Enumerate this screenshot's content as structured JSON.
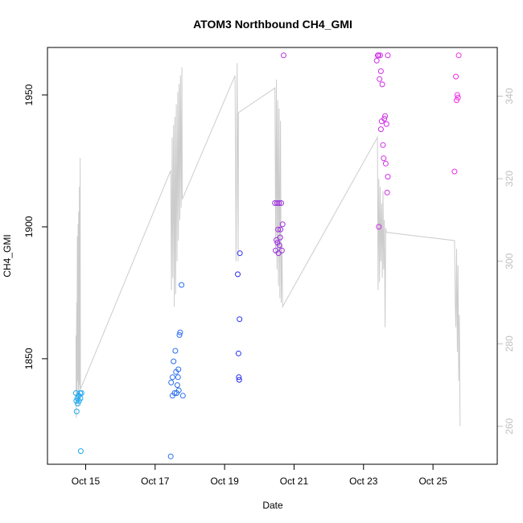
{
  "chart_data": {
    "type": "scatter",
    "title": "ATOM3 Northbound CH4_GMI",
    "xlabel": "Date",
    "ylabel": "CH4_GMI",
    "x_ticks": [
      {
        "value": 15,
        "label": "Oct 15"
      },
      {
        "value": 17,
        "label": "Oct 17"
      },
      {
        "value": 19,
        "label": "Oct 19"
      },
      {
        "value": 21,
        "label": "Oct 21"
      },
      {
        "value": 23,
        "label": "Oct 23"
      },
      {
        "value": 25,
        "label": "Oct 25"
      }
    ],
    "xlim": [
      13.9,
      26.85
    ],
    "ylim": [
      1810,
      1968
    ],
    "y_ticks": [
      1850,
      1900,
      1950
    ],
    "y2lim": [
      250.8,
      351.8
    ],
    "y2_ticks": [
      260,
      280,
      300,
      320,
      340
    ],
    "grid": false,
    "legend": "none",
    "colors": {
      "line": "#cccccc",
      "right_axis": "#bfbfbf",
      "axis": "#000000"
    },
    "series": [
      {
        "kind": "points",
        "points": [
          {
            "x": 14.72,
            "y": 1837,
            "c": "#1ea8f0"
          },
          {
            "x": 14.76,
            "y": 1835,
            "c": "#1ea8f0"
          },
          {
            "x": 14.8,
            "y": 1836,
            "c": "#1ea8f0"
          },
          {
            "x": 14.84,
            "y": 1837,
            "c": "#1ea8f0"
          },
          {
            "x": 14.88,
            "y": 1837,
            "c": "#1ea8f0"
          },
          {
            "x": 14.73,
            "y": 1834,
            "c": "#1ea8f0"
          },
          {
            "x": 14.77,
            "y": 1833,
            "c": "#1ea8f0"
          },
          {
            "x": 14.81,
            "y": 1834,
            "c": "#1ea8f0"
          },
          {
            "x": 14.85,
            "y": 1835,
            "c": "#1ea8f0"
          },
          {
            "x": 14.74,
            "y": 1830,
            "c": "#1ea8f0"
          },
          {
            "x": 14.86,
            "y": 1815,
            "c": "#1ea8f0"
          },
          {
            "x": 17.45,
            "y": 1813,
            "c": "#2c6ef0"
          },
          {
            "x": 17.46,
            "y": 1841,
            "c": "#2c6ef0"
          },
          {
            "x": 17.5,
            "y": 1843,
            "c": "#2c6ef0"
          },
          {
            "x": 17.5,
            "y": 1836,
            "c": "#2c6ef0"
          },
          {
            "x": 17.53,
            "y": 1849,
            "c": "#2c6ef0"
          },
          {
            "x": 17.56,
            "y": 1837,
            "c": "#2c6ef0"
          },
          {
            "x": 17.58,
            "y": 1853,
            "c": "#2c6ef0"
          },
          {
            "x": 17.6,
            "y": 1845,
            "c": "#2c6ef0"
          },
          {
            "x": 17.62,
            "y": 1837,
            "c": "#2c6ef0"
          },
          {
            "x": 17.64,
            "y": 1840,
            "c": "#2c6ef0"
          },
          {
            "x": 17.66,
            "y": 1843,
            "c": "#2c6ef0"
          },
          {
            "x": 17.67,
            "y": 1846,
            "c": "#2c6ef0"
          },
          {
            "x": 17.68,
            "y": 1838,
            "c": "#2c6ef0"
          },
          {
            "x": 17.7,
            "y": 1859,
            "c": "#2c6ef0"
          },
          {
            "x": 17.72,
            "y": 1860,
            "c": "#2c6ef0"
          },
          {
            "x": 17.76,
            "y": 1878,
            "c": "#2c6ef0"
          },
          {
            "x": 17.8,
            "y": 1836,
            "c": "#2c6ef0"
          },
          {
            "x": 19.38,
            "y": 1882,
            "c": "#2a2ef0"
          },
          {
            "x": 19.4,
            "y": 1852,
            "c": "#2a2ef0"
          },
          {
            "x": 19.41,
            "y": 1843,
            "c": "#2a2ef0"
          },
          {
            "x": 19.42,
            "y": 1842,
            "c": "#2a2ef0"
          },
          {
            "x": 19.43,
            "y": 1865,
            "c": "#2a2ef0"
          },
          {
            "x": 19.44,
            "y": 1890,
            "c": "#2a2ef0"
          },
          {
            "x": 20.45,
            "y": 1909,
            "c": "#9b2ee0"
          },
          {
            "x": 20.47,
            "y": 1891,
            "c": "#9b2ee0"
          },
          {
            "x": 20.49,
            "y": 1895,
            "c": "#9b2ee0"
          },
          {
            "x": 20.51,
            "y": 1909,
            "c": "#9b2ee0"
          },
          {
            "x": 20.52,
            "y": 1894,
            "c": "#9b2ee0"
          },
          {
            "x": 20.54,
            "y": 1899,
            "c": "#9b2ee0"
          },
          {
            "x": 20.55,
            "y": 1890,
            "c": "#9b2ee0"
          },
          {
            "x": 20.57,
            "y": 1909,
            "c": "#9b2ee0"
          },
          {
            "x": 20.58,
            "y": 1893,
            "c": "#9b2ee0"
          },
          {
            "x": 20.6,
            "y": 1896,
            "c": "#9b2ee0"
          },
          {
            "x": 20.61,
            "y": 1899,
            "c": "#9b2ee0"
          },
          {
            "x": 20.63,
            "y": 1909,
            "c": "#9b2ee0"
          },
          {
            "x": 20.65,
            "y": 1891,
            "c": "#9b2ee0"
          },
          {
            "x": 20.67,
            "y": 1901,
            "c": "#9b2ee0"
          },
          {
            "x": 20.7,
            "y": 1965,
            "c": "#b52ee0"
          },
          {
            "x": 23.38,
            "y": 1963,
            "c": "#cf2ee6"
          },
          {
            "x": 23.41,
            "y": 1965,
            "c": "#cf2ee6"
          },
          {
            "x": 23.43,
            "y": 1965,
            "c": "#cf2ee6"
          },
          {
            "x": 23.44,
            "y": 1900,
            "c": "#cf2ee6"
          },
          {
            "x": 23.46,
            "y": 1956,
            "c": "#cf2ee6"
          },
          {
            "x": 23.48,
            "y": 1965,
            "c": "#cf2ee6"
          },
          {
            "x": 23.5,
            "y": 1959,
            "c": "#cf2ee6"
          },
          {
            "x": 23.5,
            "y": 1937,
            "c": "#cf2ee6"
          },
          {
            "x": 23.52,
            "y": 1940,
            "c": "#cf2ee6"
          },
          {
            "x": 23.54,
            "y": 1954,
            "c": "#cf2ee6"
          },
          {
            "x": 23.56,
            "y": 1931,
            "c": "#cf2ee6"
          },
          {
            "x": 23.58,
            "y": 1926,
            "c": "#cf2ee6"
          },
          {
            "x": 23.6,
            "y": 1941,
            "c": "#cf2ee6"
          },
          {
            "x": 23.62,
            "y": 1942,
            "c": "#cf2ee6"
          },
          {
            "x": 23.64,
            "y": 1924,
            "c": "#cf2ee6"
          },
          {
            "x": 23.66,
            "y": 1939,
            "c": "#cf2ee6"
          },
          {
            "x": 23.68,
            "y": 1913,
            "c": "#cf2ee6"
          },
          {
            "x": 23.7,
            "y": 1919,
            "c": "#cf2ee6"
          },
          {
            "x": 23.7,
            "y": 1965,
            "c": "#cf2ee6"
          },
          {
            "x": 25.62,
            "y": 1921,
            "c": "#f02ee6"
          },
          {
            "x": 25.66,
            "y": 1957,
            "c": "#f02ee6"
          },
          {
            "x": 25.68,
            "y": 1948,
            "c": "#f02ee6"
          },
          {
            "x": 25.7,
            "y": 1950,
            "c": "#f02ee6"
          },
          {
            "x": 25.72,
            "y": 1949,
            "c": "#f02ee6"
          },
          {
            "x": 25.74,
            "y": 1965,
            "c": "#f02ee6"
          }
        ]
      },
      {
        "kind": "line",
        "axis": "right",
        "points": [
          [
            14.72,
            282
          ],
          [
            14.73,
            262
          ],
          [
            14.74,
            290
          ],
          [
            14.75,
            267
          ],
          [
            14.76,
            306
          ],
          [
            14.77,
            271
          ],
          [
            14.78,
            309
          ],
          [
            14.79,
            265
          ],
          [
            14.8,
            312
          ],
          [
            14.81,
            270
          ],
          [
            14.82,
            318
          ],
          [
            14.83,
            266
          ],
          [
            14.84,
            325
          ],
          [
            14.85,
            269
          ],
          [
            17.45,
            322
          ],
          [
            17.47,
            293
          ],
          [
            17.49,
            330
          ],
          [
            17.51,
            296
          ],
          [
            17.53,
            333
          ],
          [
            17.55,
            289
          ],
          [
            17.57,
            335
          ],
          [
            17.59,
            292
          ],
          [
            17.61,
            338
          ],
          [
            17.63,
            300
          ],
          [
            17.65,
            341
          ],
          [
            17.67,
            305
          ],
          [
            17.69,
            343
          ],
          [
            17.71,
            310
          ],
          [
            17.73,
            345
          ],
          [
            17.75,
            313
          ],
          [
            17.77,
            347
          ],
          [
            17.78,
            315
          ],
          [
            19.3,
            345
          ],
          [
            19.33,
            300
          ],
          [
            19.36,
            348
          ],
          [
            19.39,
            300
          ],
          [
            19.4,
            336
          ],
          [
            20.45,
            342
          ],
          [
            20.47,
            302
          ],
          [
            20.49,
            344
          ],
          [
            20.51,
            298
          ],
          [
            20.53,
            339
          ],
          [
            20.55,
            294
          ],
          [
            20.57,
            337
          ],
          [
            20.59,
            291
          ],
          [
            20.61,
            334
          ],
          [
            20.63,
            290
          ],
          [
            20.65,
            304
          ],
          [
            20.67,
            289
          ],
          [
            23.4,
            330
          ],
          [
            23.42,
            293
          ],
          [
            23.44,
            320
          ],
          [
            23.46,
            295
          ],
          [
            23.48,
            318
          ],
          [
            23.5,
            300
          ],
          [
            23.52,
            314
          ],
          [
            23.54,
            296
          ],
          [
            23.56,
            317
          ],
          [
            23.58,
            298
          ],
          [
            23.6,
            310
          ],
          [
            23.62,
            284
          ],
          [
            23.64,
            308
          ],
          [
            23.66,
            307
          ],
          [
            25.62,
            305
          ],
          [
            25.64,
            290
          ],
          [
            25.66,
            284
          ],
          [
            25.68,
            303
          ],
          [
            25.7,
            278
          ],
          [
            25.72,
            299
          ],
          [
            25.74,
            271
          ],
          [
            25.76,
            287
          ],
          [
            25.78,
            260
          ]
        ]
      }
    ]
  }
}
